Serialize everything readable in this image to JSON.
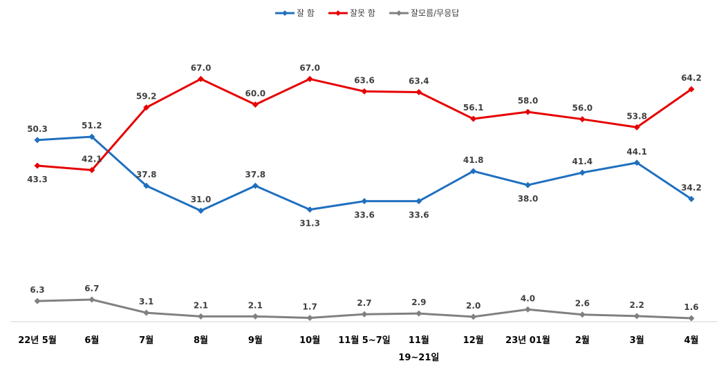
{
  "chart_data": {
    "type": "line",
    "categories": [
      "22년 5월",
      "6월",
      "7월",
      "8월",
      "9월",
      "10월",
      "11월 5~7일",
      "11월",
      "12월",
      "23년 01월",
      "2월",
      "3월",
      "4월"
    ],
    "category_sublabels": [
      "",
      "",
      "",
      "",
      "",
      "",
      "",
      "19~21일",
      "",
      "",
      "",
      "",
      ""
    ],
    "series": [
      {
        "name": "잘 함",
        "color": "#1f6fbf",
        "values": [
          50.3,
          51.2,
          37.8,
          31.0,
          37.8,
          31.3,
          33.6,
          33.6,
          41.8,
          38.0,
          41.4,
          44.1,
          34.2
        ]
      },
      {
        "name": "잘못 함",
        "color": "#e60000",
        "values": [
          43.3,
          42.1,
          59.2,
          67.0,
          60.0,
          67.0,
          63.6,
          63.4,
          56.1,
          58.0,
          56.0,
          53.8,
          64.2
        ]
      },
      {
        "name": "잘모름/무응답",
        "color": "#808080",
        "values": [
          6.3,
          6.7,
          3.1,
          2.1,
          2.1,
          1.7,
          2.7,
          2.9,
          2.0,
          4.0,
          2.6,
          2.2,
          1.6
        ]
      }
    ],
    "legend_position": "top-center",
    "grid": false
  }
}
